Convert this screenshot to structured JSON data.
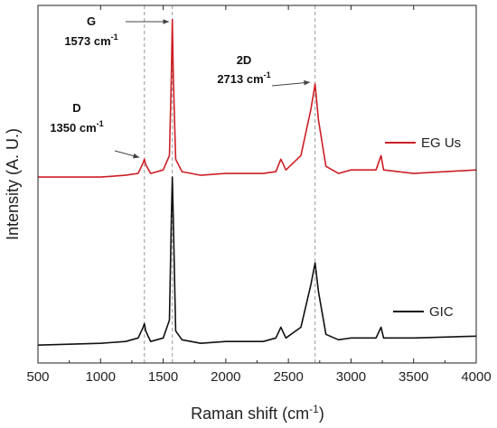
{
  "chart_data": {
    "type": "line",
    "xlabel": "Raman shift (cm",
    "xlabel_sup": "-1",
    "xlabel_end": ")",
    "ylabel": "Intensity (A. U.)",
    "xlim": [
      500,
      4000
    ],
    "ylim": [
      0,
      100
    ],
    "x_ticks": [
      500,
      1000,
      1500,
      2000,
      2500,
      3000,
      3500,
      4000
    ],
    "x_tick_labels": [
      "500",
      "1000",
      "1500",
      "2000",
      "2500",
      "3000",
      "3500",
      "4000"
    ],
    "y_ticks_labeled": false,
    "grid": false,
    "legend_placement": "right",
    "series": [
      {
        "name": "EG Us",
        "color": "#cc1f26",
        "x": [
          500,
          1000,
          1200,
          1300,
          1340,
          1350,
          1360,
          1400,
          1500,
          1550,
          1565,
          1573,
          1581,
          1600,
          1650,
          1800,
          2000,
          2300,
          2400,
          2440,
          2480,
          2600,
          2680,
          2713,
          2740,
          2800,
          2900,
          3000,
          3200,
          3240,
          3260,
          3500,
          4000
        ],
        "y": [
          52,
          52,
          52.5,
          53,
          56,
          57,
          55.5,
          53,
          54,
          58,
          80,
          96,
          80,
          57,
          53.5,
          52.5,
          53,
          53,
          53.5,
          57,
          54,
          58,
          71,
          78,
          68,
          55,
          53,
          54,
          54,
          58,
          54,
          53,
          54
        ]
      },
      {
        "name": "GIC",
        "color": "#111111",
        "x": [
          500,
          1000,
          1200,
          1300,
          1340,
          1350,
          1360,
          1400,
          1500,
          1550,
          1565,
          1573,
          1581,
          1600,
          1650,
          1800,
          2000,
          2300,
          2400,
          2440,
          2480,
          2600,
          2680,
          2713,
          2740,
          2800,
          2900,
          3000,
          3200,
          3240,
          3260,
          3500,
          4000
        ],
        "y": [
          5,
          5.5,
          6,
          7,
          10,
          11,
          9,
          6,
          7,
          12,
          40,
          52,
          40,
          9,
          6.5,
          5.5,
          6,
          6,
          7,
          10,
          7,
          10,
          22,
          28,
          20,
          8,
          6.5,
          7,
          7,
          10,
          7,
          7,
          7.5
        ]
      }
    ],
    "reference_lines_x": [
      1350,
      1573,
      2713
    ],
    "annotations": [
      {
        "label": "D",
        "value": "1350 cm",
        "sup": "-1",
        "x": 1350,
        "y": 57
      },
      {
        "label": "G",
        "value": "1573 cm",
        "sup": "-1",
        "x": 1573,
        "y": 96
      },
      {
        "label": "2D",
        "value": "2713 cm",
        "sup": "-1",
        "x": 2713,
        "y": 78
      }
    ]
  }
}
